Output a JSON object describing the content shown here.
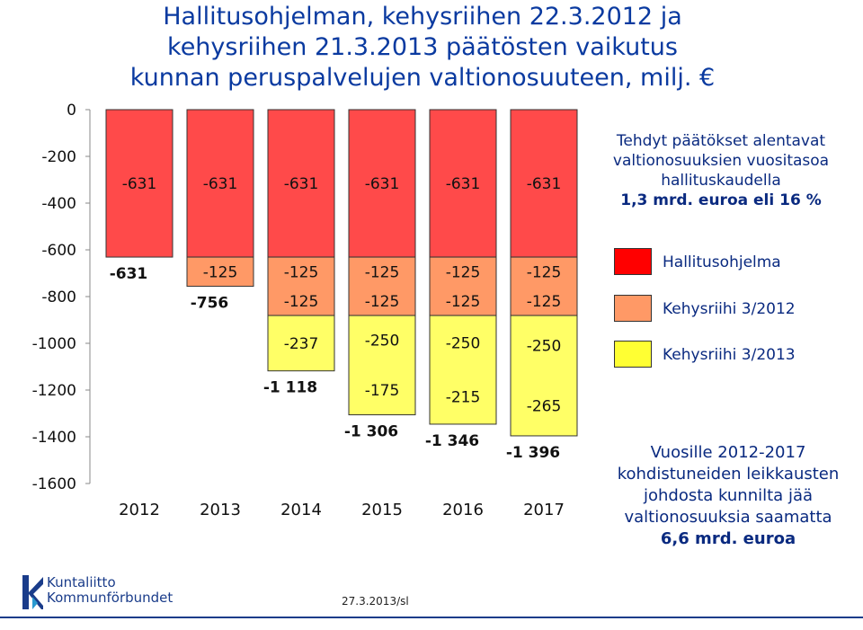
{
  "title_lines": [
    "Hallitusohjelman, kehysriihen 22.3.2012 ja",
    "kehysriihen 21.3.2013 päätösten vaikutus",
    "kunnan peruspalvelujen valtionosuuteen, milj. €"
  ],
  "chart_data": {
    "type": "bar",
    "stacked": true,
    "direction": "negative",
    "categories": [
      "2012",
      "2013",
      "2014",
      "2015",
      "2016",
      "2017"
    ],
    "series": [
      {
        "name": "Hallitusohjelma",
        "color": "#ff4a4a",
        "values": [
          -631,
          -631,
          -631,
          -631,
          -631,
          -631
        ],
        "labels": [
          "-631",
          "-631",
          "-631",
          "-631",
          "-631",
          "-631"
        ]
      },
      {
        "name": "Kehysriihi 3/2012",
        "color": "#ff9966",
        "values": [
          0,
          -125,
          -250,
          -250,
          -250,
          -250
        ],
        "segment_labels": [
          [],
          [
            "-125"
          ],
          [
            "-125",
            "-125"
          ],
          [
            "-125",
            "-125"
          ],
          [
            "-125",
            "-125"
          ],
          [
            "-125",
            "-125"
          ]
        ]
      },
      {
        "name": "Kehysriihi 3/2013",
        "color": "#ffff66",
        "values": [
          0,
          0,
          -237,
          -425,
          -465,
          -515
        ],
        "segment_labels": [
          [],
          [],
          [
            "-237"
          ],
          [
            "-250",
            "-175"
          ],
          [
            "-250",
            "-215"
          ],
          [
            "-250",
            "-265"
          ]
        ]
      }
    ],
    "totals": [
      "-631",
      "-756",
      "-1 118",
      "-1 306",
      "-1 346",
      "-1 396"
    ],
    "ylim": [
      -1600,
      0
    ],
    "yticks": [
      "0",
      "-200",
      "-400",
      "-600",
      "-800",
      "-1000",
      "-1200",
      "-1400",
      "-1600"
    ],
    "ytick_values": [
      0,
      -200,
      -400,
      -600,
      -800,
      -1000,
      -1200,
      -1400,
      -1600
    ]
  },
  "legend": [
    {
      "label": "Hallitusohjelma",
      "color": "#ff0000"
    },
    {
      "label": "Kehysriihi 3/2012",
      "color": "#ff9966"
    },
    {
      "label": "Kehysriihi 3/2013",
      "color": "#ffff33"
    }
  ],
  "note_top": {
    "lines": [
      "Tehdyt päätökset alentavat",
      "valtionosuuksien vuositasoa",
      "hallituskaudella"
    ],
    "bold_line": "1,3 mrd. euroa eli 16 %"
  },
  "note_bottom": {
    "lines": [
      "Vuosille 2012-2017",
      "kohdistuneiden leikkausten",
      "johdosta kunnilta jää",
      "valtionosuuksia saamatta"
    ],
    "bold_line": "6,6 mrd. euroa"
  },
  "logo": {
    "line1": "Kuntaliitto",
    "line2": "Kommunförbundet"
  },
  "footer": {
    "date": "27.3.2013/sl"
  }
}
